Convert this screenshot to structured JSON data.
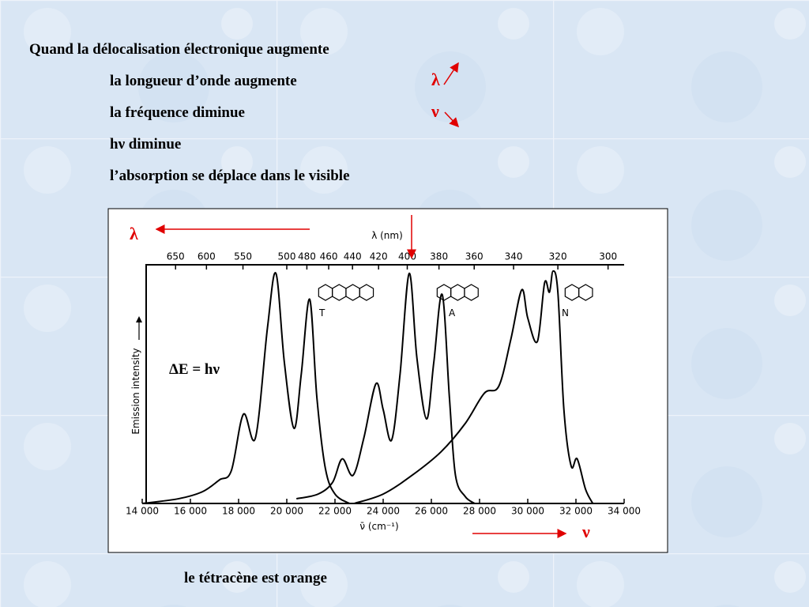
{
  "slide": {
    "heading": "Quand la délocalisation électronique augmente",
    "lines": [
      "la longueur d’onde augmente",
      "la fréquence diminue",
      "hν diminue",
      "l’absorption se déplace dans le visible"
    ],
    "lambda_symbol": "λ",
    "nu_symbol": "ν",
    "equation": "ΔE = hν",
    "caption": "le tétracène est orange"
  },
  "chart_data": {
    "type": "line",
    "xlabel": "ν̄ (cm⁻¹)",
    "ylabel": "Emission intensity",
    "x2label": "λ (nm)",
    "xlim": [
      14000,
      34000
    ],
    "xticks": [
      {
        "value": 14000,
        "label": "14 000"
      },
      {
        "value": 16000,
        "label": "16 000"
      },
      {
        "value": 18000,
        "label": "18 000"
      },
      {
        "value": 20000,
        "label": "20 000"
      },
      {
        "value": 22000,
        "label": "22 000"
      },
      {
        "value": 24000,
        "label": "24 000"
      },
      {
        "value": 26000,
        "label": "26 000"
      },
      {
        "value": 28000,
        "label": "28 000"
      },
      {
        "value": 30000,
        "label": "30 000"
      },
      {
        "value": 32000,
        "label": "32 000"
      },
      {
        "value": 34000,
        "label": "34 000"
      }
    ],
    "x2ticks": [
      650,
      600,
      550,
      500,
      480,
      460,
      440,
      420,
      400,
      380,
      360,
      340,
      320,
      300
    ],
    "ylim": [
      0,
      100
    ],
    "series": [
      {
        "name": "T",
        "color": "#000000",
        "x": [
          14000,
          15500,
          16500,
          17200,
          17700,
          18200,
          18700,
          19200,
          19550,
          19900,
          20300,
          20600,
          20950,
          21250,
          21600,
          22000,
          22600
        ],
        "values": [
          0,
          2,
          5,
          10,
          14,
          38,
          28,
          75,
          98,
          60,
          32,
          55,
          87,
          45,
          15,
          4,
          0
        ]
      },
      {
        "name": "A",
        "color": "#000000",
        "x": [
          20400,
          21300,
          21900,
          22300,
          22750,
          23200,
          23700,
          24000,
          24350,
          24700,
          25080,
          25400,
          25800,
          26100,
          26450,
          26750,
          27000,
          27400,
          27800
        ],
        "values": [
          2,
          4,
          9,
          19,
          12,
          28,
          51,
          40,
          27,
          55,
          98,
          62,
          36,
          60,
          89,
          45,
          12,
          3,
          0
        ]
      },
      {
        "name": "N",
        "color": "#000000",
        "x": [
          22800,
          24000,
          25200,
          26400,
          27400,
          28200,
          28800,
          29300,
          29750,
          30000,
          30400,
          30700,
          30900,
          31050,
          31250,
          31500,
          31800,
          32050,
          32400,
          32700
        ],
        "values": [
          0,
          4,
          12,
          22,
          34,
          47,
          50,
          70,
          91,
          79,
          69,
          94,
          90,
          99,
          90,
          40,
          16,
          19,
          6,
          0
        ]
      }
    ]
  }
}
